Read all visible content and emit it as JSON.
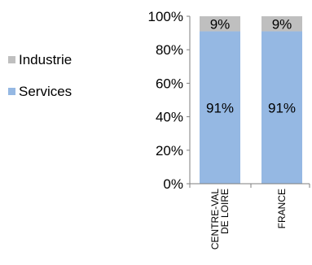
{
  "chart_data": {
    "type": "bar",
    "stacked": true,
    "percent": true,
    "categories": [
      "CENTRE-VAL DE LOIRE",
      "FRANCE"
    ],
    "category_lines": [
      [
        "CENTRE-VAL",
        "DE LOIRE"
      ],
      [
        "FRANCE"
      ]
    ],
    "series": [
      {
        "name": "Services",
        "values": [
          91,
          91
        ],
        "labels": [
          "91%",
          "91%"
        ],
        "color": "#95b8e3"
      },
      {
        "name": "Industrie",
        "values": [
          9,
          9
        ],
        "labels": [
          "9%",
          "9%"
        ],
        "color": "#bfbfbf"
      }
    ],
    "ylim": [
      0,
      100
    ],
    "yticks": [
      0,
      20,
      40,
      60,
      80,
      100
    ],
    "ytick_labels": [
      "0%",
      "20%",
      "40%",
      "60%",
      "80%",
      "100%"
    ],
    "title": "",
    "xlabel": "",
    "ylabel": "",
    "grid": false,
    "legend_position": "left",
    "legend": [
      "Industrie",
      "Services"
    ]
  }
}
